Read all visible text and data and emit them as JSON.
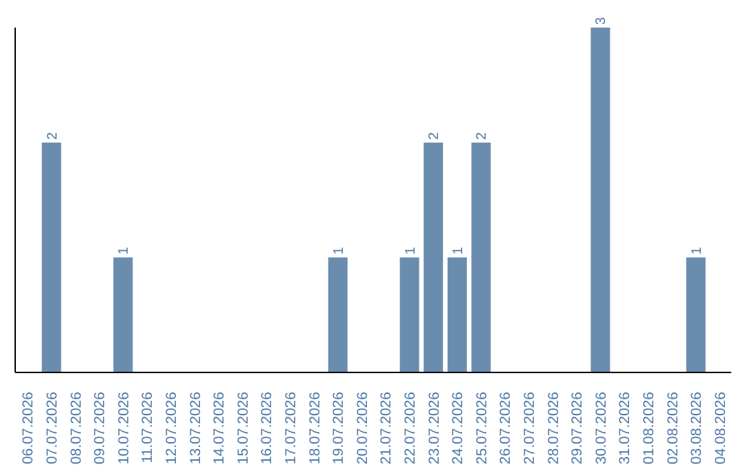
{
  "chart_data": {
    "type": "bar",
    "categories": [
      "06.07.2026",
      "07.07.2026",
      "08.07.2026",
      "09.07.2026",
      "10.07.2026",
      "11.07.2026",
      "12.07.2026",
      "13.07.2026",
      "14.07.2026",
      "15.07.2026",
      "16.07.2026",
      "17.07.2026",
      "18.07.2026",
      "19.07.2026",
      "20.07.2026",
      "21.07.2026",
      "22.07.2026",
      "23.07.2026",
      "24.07.2026",
      "25.07.2026",
      "26.07.2026",
      "27.07.2026",
      "28.07.2026",
      "29.07.2026",
      "30.07.2026",
      "31.07.2026",
      "01.08.2026",
      "02.08.2026",
      "03.08.2026",
      "04.08.2026"
    ],
    "values": [
      null,
      2,
      null,
      null,
      1,
      null,
      null,
      null,
      null,
      null,
      null,
      null,
      null,
      1,
      null,
      null,
      1,
      2,
      1,
      2,
      null,
      null,
      null,
      null,
      3,
      null,
      null,
      null,
      1,
      null
    ],
    "data_labels": true,
    "color": "#6a8caf",
    "tick_labels": "x"
  }
}
